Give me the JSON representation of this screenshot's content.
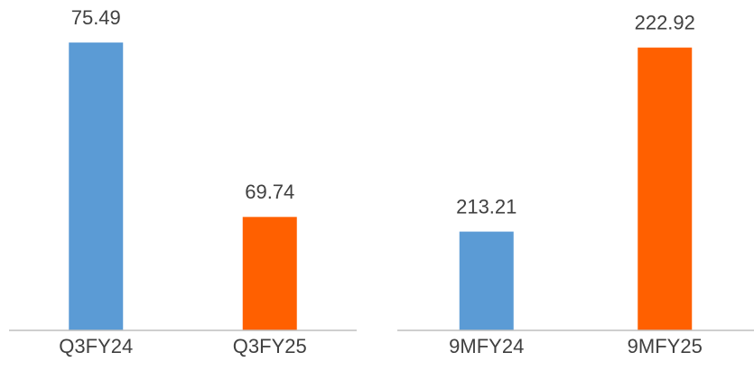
{
  "chart_data": [
    {
      "type": "bar",
      "categories": [
        "Q3FY24",
        "Q3FY25"
      ],
      "values": [
        75.49,
        69.74
      ],
      "colors": [
        "#5b9bd5",
        "#ff6000"
      ],
      "ylim": [
        66,
        76
      ]
    },
    {
      "type": "bar",
      "categories": [
        "9MFY24",
        "9MFY25"
      ],
      "values": [
        213.21,
        222.92
      ],
      "colors": [
        "#5b9bd5",
        "#ff6000"
      ],
      "ylim": [
        208,
        224
      ]
    }
  ]
}
